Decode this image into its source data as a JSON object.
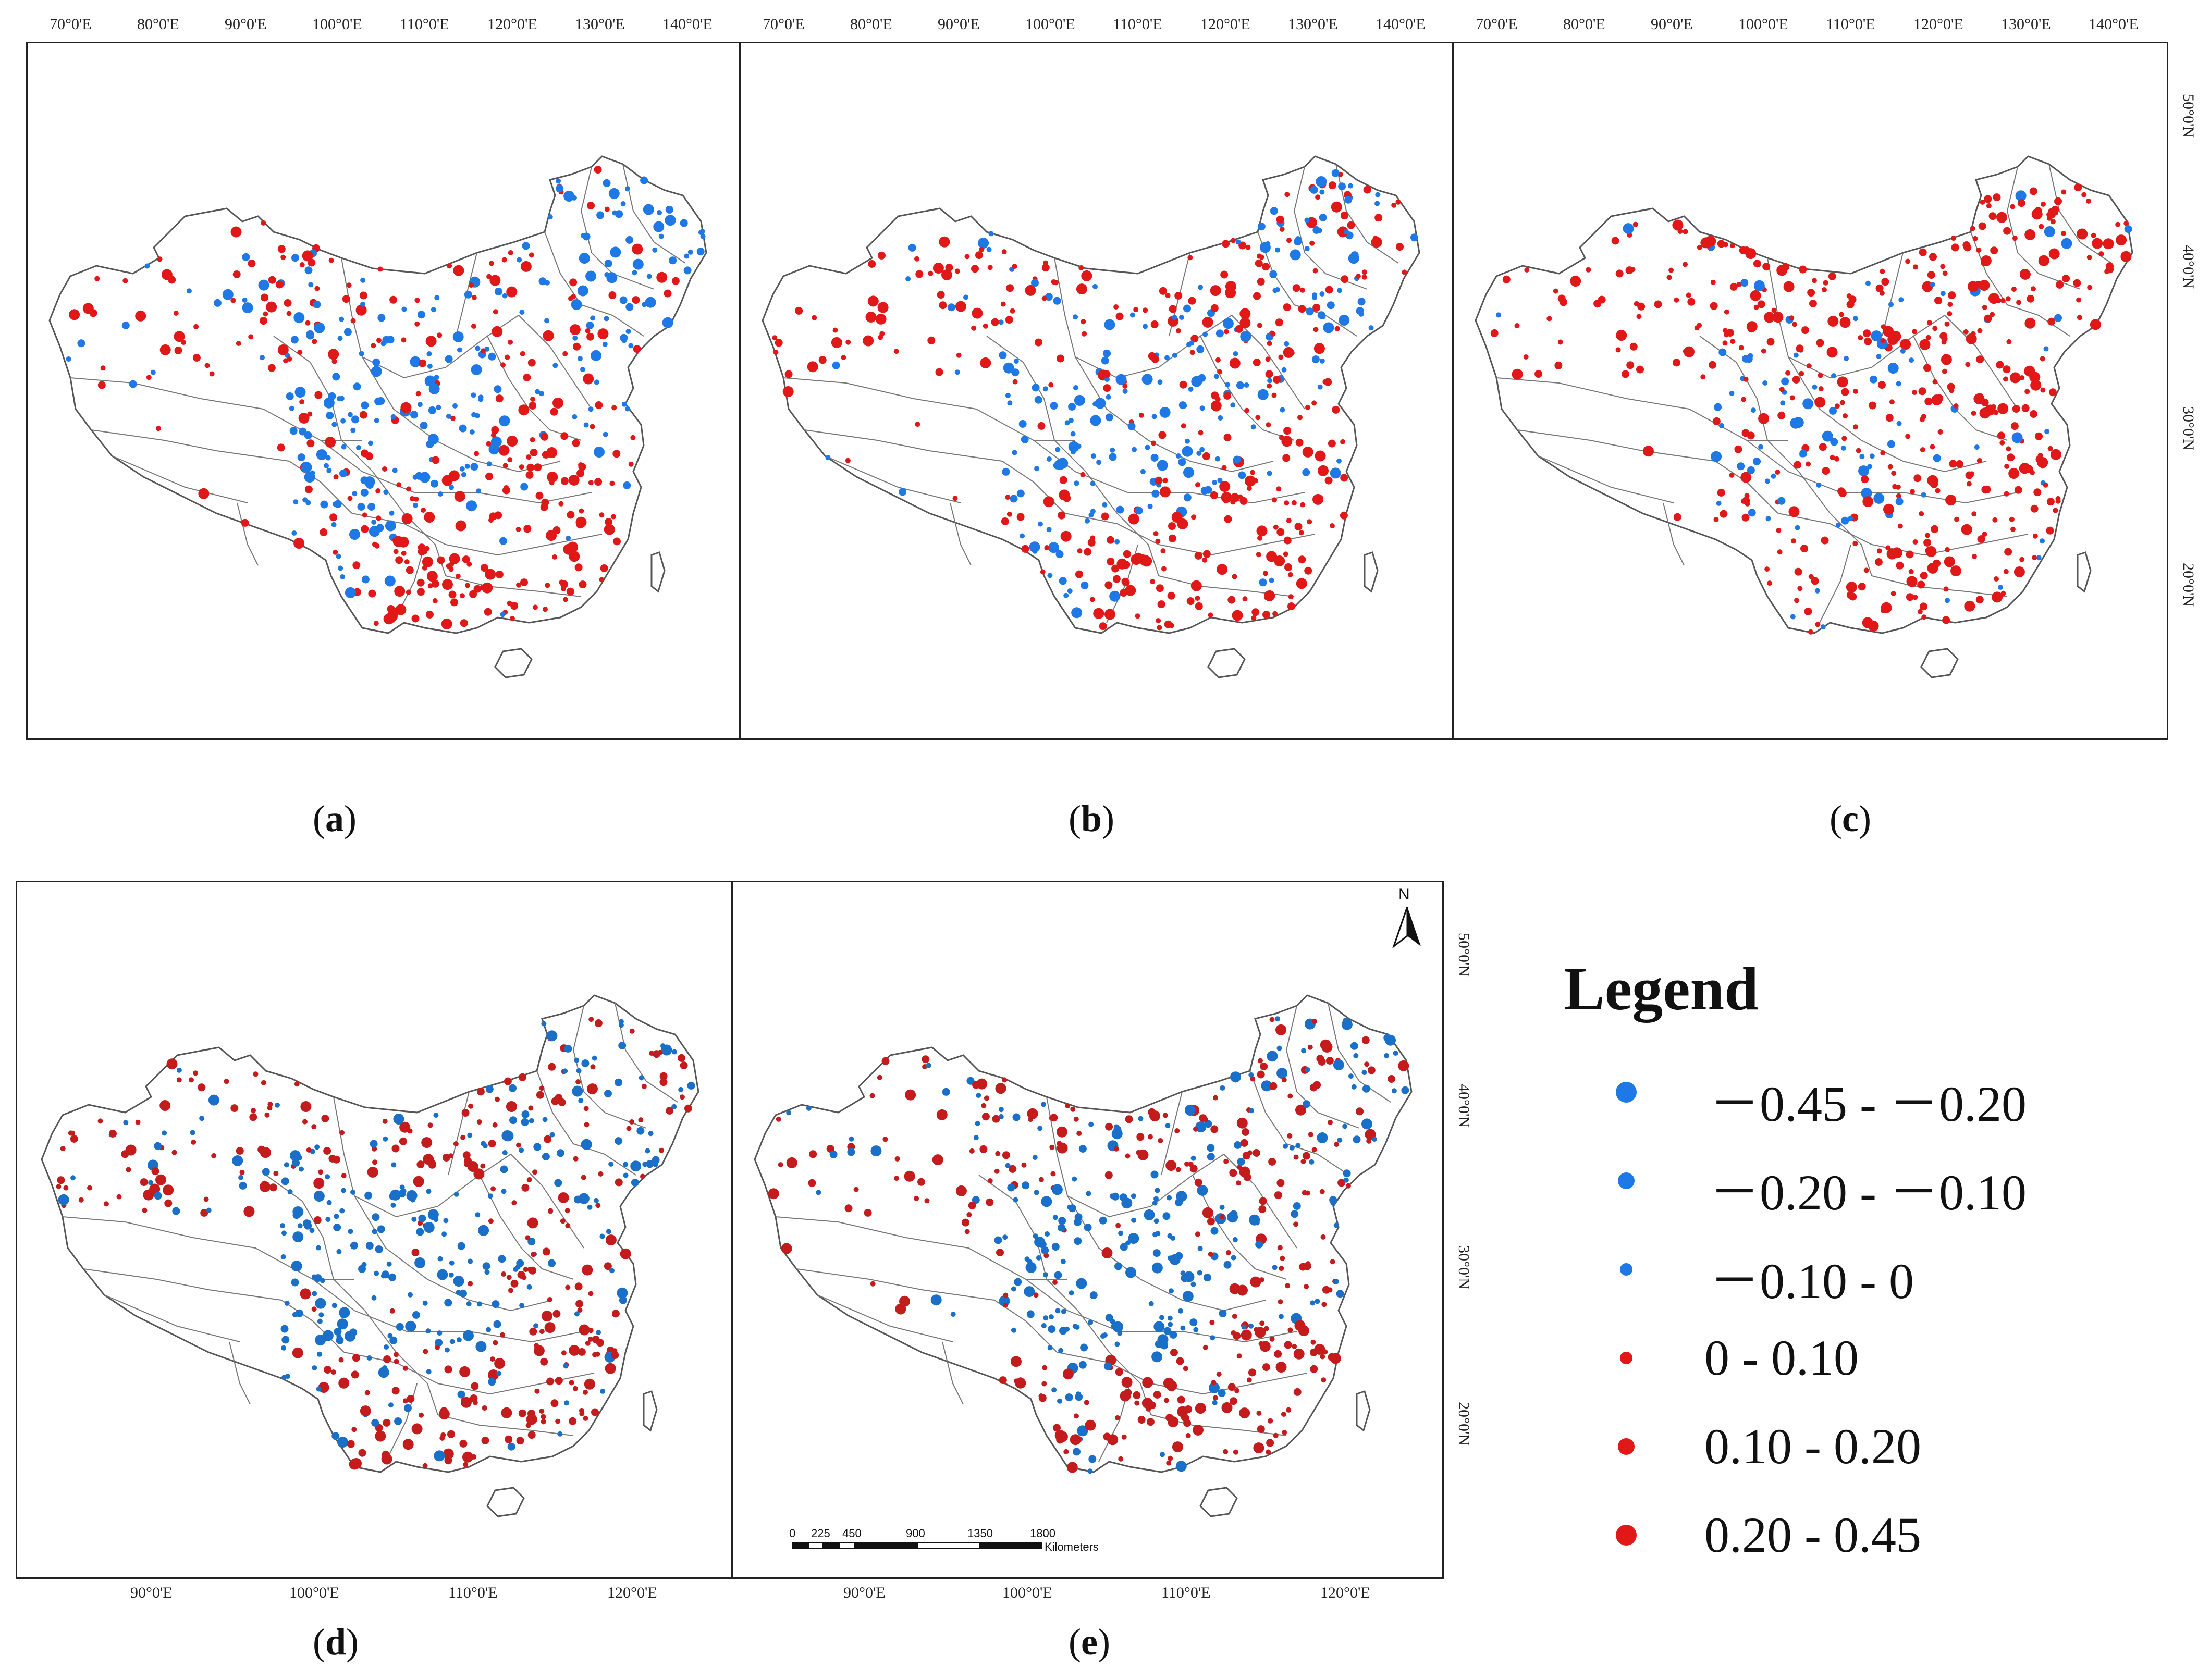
{
  "panels": [
    {
      "label": "a",
      "seed": 11
    },
    {
      "label": "b",
      "seed": 23
    },
    {
      "label": "c",
      "seed": 37
    },
    {
      "label": "d",
      "seed": 53
    },
    {
      "label": "e",
      "seed": 71
    }
  ],
  "top_lon_ticks": [
    "70°0'E",
    "80°0'E",
    "90°0'E",
    "100°0'E",
    "110°0'E",
    "120°0'E",
    "130°0'E",
    "140°0'E"
  ],
  "top_lat_ticks": [
    "50°0'N",
    "40°0'N",
    "30°0'N",
    "20°0'N"
  ],
  "bottom_lon_ticks": [
    "90°0'E",
    "100°0'E",
    "110°0'E",
    "120°0'E"
  ],
  "bottom_lat_ticks": [
    "50°0'N",
    "40°0'N",
    "30°0'N",
    "20°0'N"
  ],
  "legend": {
    "title": "Legend",
    "items": [
      {
        "label": "－0.45 - －0.20",
        "color": "#1e78e6",
        "size": "large"
      },
      {
        "label": "－0.20 - －0.10",
        "color": "#1e78e6",
        "size": "medium"
      },
      {
        "label": "－0.10 - 0",
        "color": "#1e78e6",
        "size": "small"
      },
      {
        "label": "0 - 0.10",
        "color": "#e01818",
        "size": "small"
      },
      {
        "label": "0.10 - 0.20",
        "color": "#e01818",
        "size": "medium"
      },
      {
        "label": "0.20 - 0.45",
        "color": "#e01818",
        "size": "large"
      }
    ]
  },
  "scale_bar": {
    "ticks": [
      "0",
      "225",
      "450",
      "900",
      "1350",
      "1800"
    ],
    "unit": "Kilometers"
  },
  "north_arrow": "N",
  "colors": {
    "blue": "#1e78e6",
    "red": "#e01818",
    "blue_dark": "#1a70c8",
    "red_dark": "#c41c1c"
  }
}
